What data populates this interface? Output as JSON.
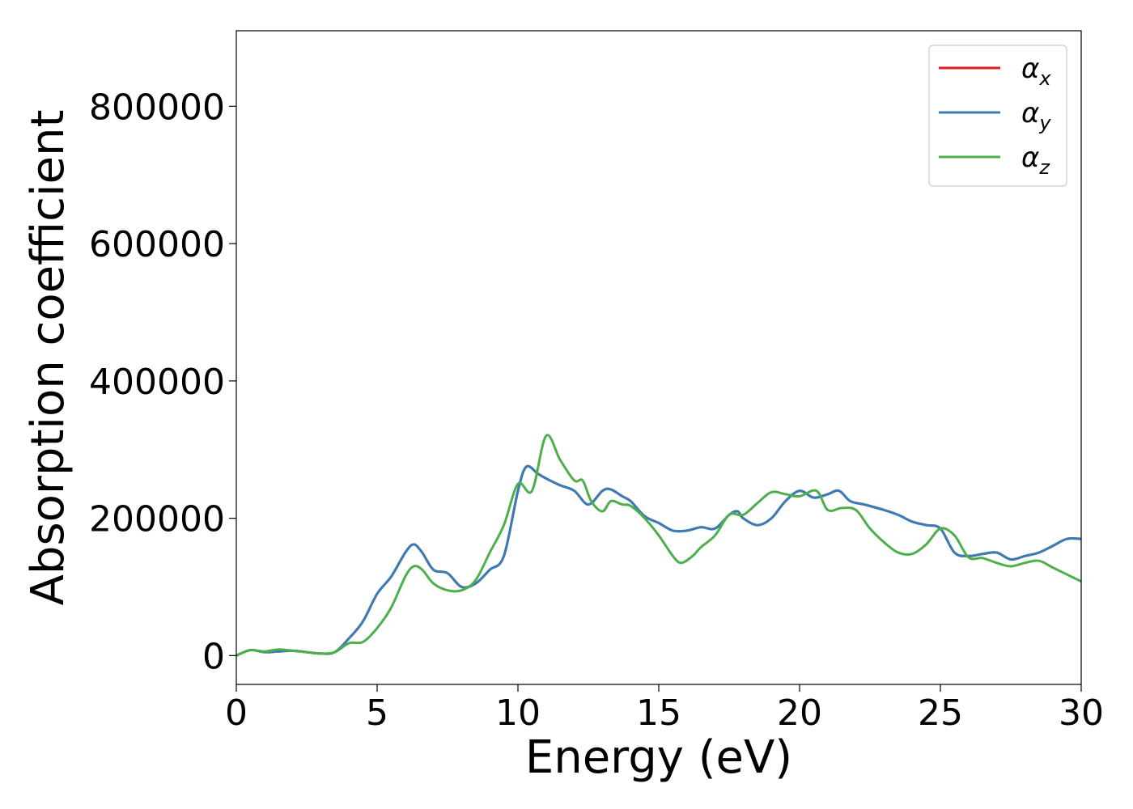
{
  "chart_data": {
    "type": "line",
    "xlabel": "Energy (eV)",
    "ylabel": "Absorption coefficient",
    "xlim": [
      0,
      30
    ],
    "ylim": [
      -42000,
      910000
    ],
    "x_ticks": [
      "0",
      "5",
      "10",
      "15",
      "20",
      "25",
      "30"
    ],
    "y_ticks": [
      "0",
      "200000",
      "400000",
      "600000",
      "800000"
    ],
    "grid": false,
    "legend": "top-right",
    "series": [
      {
        "name": "α",
        "subscript": "x",
        "color": "#e41a1c",
        "x": [
          0,
          0.5,
          1,
          1.5,
          2,
          2.5,
          3,
          3.5,
          4,
          4.5,
          5,
          5.5,
          6,
          6.3,
          6.6,
          7,
          7.5,
          8,
          8.5,
          9,
          9.5,
          10,
          10.3,
          10.7,
          11,
          11.5,
          12,
          12.5,
          13,
          13.3,
          13.7,
          14,
          14.5,
          15,
          15.5,
          16,
          16.5,
          17,
          17.5,
          17.8,
          18,
          18.5,
          19,
          19.5,
          20,
          20.5,
          21,
          21.4,
          21.8,
          22.3,
          23,
          23.5,
          24,
          24.5,
          25,
          25.5,
          26,
          26.5,
          27,
          27.5,
          28,
          28.5,
          29,
          29.5,
          30
        ],
        "values": [
          0,
          8000,
          5000,
          6000,
          7000,
          5000,
          3000,
          5000,
          25000,
          50000,
          90000,
          115000,
          150000,
          162000,
          150000,
          125000,
          120000,
          100000,
          105000,
          125000,
          145000,
          240000,
          275000,
          265000,
          258000,
          248000,
          240000,
          220000,
          240000,
          242000,
          232000,
          225000,
          203000,
          193000,
          182000,
          182000,
          187000,
          185000,
          205000,
          210000,
          200000,
          190000,
          200000,
          225000,
          240000,
          230000,
          235000,
          240000,
          225000,
          220000,
          212000,
          205000,
          195000,
          190000,
          185000,
          150000,
          145000,
          148000,
          150000,
          140000,
          145000,
          150000,
          160000,
          170000,
          170000
        ]
      },
      {
        "name": "α",
        "subscript": "y",
        "color": "#377eb8",
        "x": [
          0,
          0.5,
          1,
          1.5,
          2,
          2.5,
          3,
          3.5,
          4,
          4.5,
          5,
          5.5,
          6,
          6.3,
          6.6,
          7,
          7.5,
          8,
          8.5,
          9,
          9.5,
          10,
          10.3,
          10.7,
          11,
          11.5,
          12,
          12.5,
          13,
          13.3,
          13.7,
          14,
          14.5,
          15,
          15.5,
          16,
          16.5,
          17,
          17.5,
          17.8,
          18,
          18.5,
          19,
          19.5,
          20,
          20.5,
          21,
          21.4,
          21.8,
          22.3,
          23,
          23.5,
          24,
          24.5,
          25,
          25.5,
          26,
          26.5,
          27,
          27.5,
          28,
          28.5,
          29,
          29.5,
          30
        ],
        "values": [
          0,
          8000,
          5000,
          6000,
          7000,
          5000,
          3000,
          5000,
          25000,
          50000,
          90000,
          115000,
          150000,
          162000,
          150000,
          125000,
          120000,
          100000,
          105000,
          125000,
          145000,
          240000,
          275000,
          265000,
          258000,
          248000,
          240000,
          220000,
          240000,
          242000,
          232000,
          225000,
          203000,
          193000,
          182000,
          182000,
          187000,
          185000,
          205000,
          210000,
          200000,
          190000,
          200000,
          225000,
          240000,
          230000,
          235000,
          240000,
          225000,
          220000,
          212000,
          205000,
          195000,
          190000,
          185000,
          150000,
          145000,
          148000,
          150000,
          140000,
          145000,
          150000,
          160000,
          170000,
          170000
        ]
      },
      {
        "name": "α",
        "subscript": "z",
        "color": "#4daf4a",
        "x": [
          0,
          0.5,
          1,
          1.5,
          2,
          2.5,
          3,
          3.5,
          4,
          4.5,
          5,
          5.5,
          6,
          6.3,
          6.6,
          7,
          7.5,
          8,
          8.5,
          9,
          9.5,
          10,
          10.5,
          11,
          11.5,
          12,
          12.3,
          12.6,
          13,
          13.3,
          13.7,
          14,
          14.5,
          15,
          15.5,
          15.8,
          16.2,
          16.5,
          17,
          17.5,
          18,
          18.5,
          19,
          19.5,
          20,
          20.6,
          21,
          21.5,
          22,
          22.5,
          23,
          23.5,
          24,
          24.5,
          25,
          25.5,
          26,
          26.5,
          27,
          27.5,
          28,
          28.5,
          29,
          29.5,
          30
        ],
        "values": [
          0,
          8000,
          6000,
          9000,
          7000,
          5000,
          3000,
          5000,
          18000,
          20000,
          40000,
          70000,
          115000,
          130000,
          125000,
          105000,
          95000,
          95000,
          110000,
          150000,
          190000,
          250000,
          240000,
          320000,
          285000,
          255000,
          255000,
          225000,
          210000,
          225000,
          220000,
          218000,
          200000,
          175000,
          145000,
          135000,
          145000,
          158000,
          175000,
          205000,
          205000,
          222000,
          238000,
          235000,
          232000,
          240000,
          212000,
          215000,
          212000,
          185000,
          165000,
          150000,
          148000,
          162000,
          185000,
          175000,
          143000,
          142000,
          135000,
          130000,
          135000,
          138000,
          128000,
          118000,
          108000
        ]
      }
    ]
  }
}
